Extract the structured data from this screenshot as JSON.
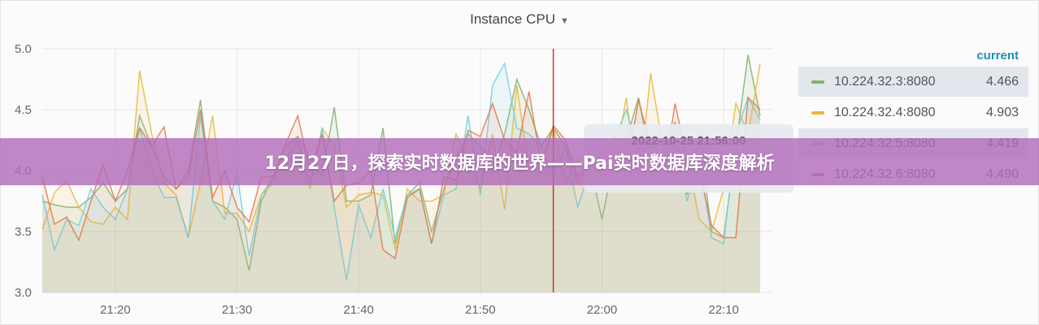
{
  "panel": {
    "title": "Instance CPU",
    "menu_icon": "caret-down-icon"
  },
  "banner": {
    "text": "12月27日，探索实时数据库的世界——Pai实时数据库深度解析"
  },
  "tooltip": {
    "time": "2022-10-25 21:56:00"
  },
  "legend": {
    "header": "current"
  },
  "chart_data": {
    "type": "line",
    "title": "Instance CPU",
    "x_start": "21:14",
    "x_step_minutes": 1,
    "xticks": [
      "21:20",
      "21:30",
      "21:40",
      "21:50",
      "22:00",
      "22:10"
    ],
    "yticks": [
      "3.0",
      "3.5",
      "4.0",
      "4.5",
      "5.0"
    ],
    "ylim": [
      3.0,
      5.0
    ],
    "xlim": [
      "21:14",
      "22:14"
    ],
    "grid": true,
    "legend_placement": "right",
    "cursor_time": "21:56",
    "cursor_color": "#c0392b",
    "series": [
      {
        "name": "10.224.32.3:8080",
        "current": "4.466",
        "color": "#7eb26d",
        "highlight": true,
        "values": [
          3.75,
          3.72,
          3.7,
          3.7,
          3.78,
          3.9,
          3.75,
          3.85,
          4.45,
          4.2,
          3.95,
          3.85,
          4.0,
          4.58,
          3.75,
          3.7,
          3.6,
          3.18,
          3.75,
          3.95,
          4.2,
          4.28,
          4.1,
          3.95,
          4.52,
          3.75,
          3.75,
          3.8,
          4.35,
          3.4,
          3.8,
          3.9,
          3.5,
          3.85,
          4.1,
          4.3,
          4.2,
          4.0,
          4.3,
          4.75,
          4.5,
          4.2,
          4.35,
          4.2,
          3.9,
          4.05,
          3.6,
          4.1,
          4.25,
          4.6,
          4.1,
          3.9,
          4.4,
          3.8,
          4.3,
          3.5,
          3.45,
          4.2,
          4.95,
          4.45
        ]
      },
      {
        "name": "10.224.32.4:8080",
        "current": "4.903",
        "color": "#eab839",
        "highlight": false,
        "values": [
          3.52,
          3.82,
          3.92,
          3.7,
          3.58,
          3.56,
          3.7,
          3.6,
          4.82,
          4.3,
          3.9,
          3.8,
          3.45,
          3.9,
          4.45,
          3.65,
          3.65,
          3.5,
          3.8,
          3.9,
          4.2,
          4.25,
          3.85,
          4.35,
          4.2,
          3.7,
          3.8,
          3.82,
          3.8,
          3.35,
          3.85,
          3.75,
          3.75,
          3.8,
          4.3,
          4.1,
          3.85,
          4.3,
          3.68,
          4.7,
          4.0,
          4.05,
          4.35,
          3.9,
          4.1,
          3.95,
          4.2,
          4.05,
          4.6,
          3.85,
          4.8,
          4.2,
          3.85,
          4.1,
          3.6,
          3.5,
          3.85,
          4.55,
          4.3,
          4.88
        ]
      },
      {
        "name": "10.224.32.5:8080",
        "current": "4.419",
        "color": "#6ed0e0",
        "highlight": true,
        "values": [
          3.8,
          3.35,
          3.6,
          3.55,
          3.85,
          3.7,
          3.6,
          3.85,
          4.35,
          4.0,
          3.78,
          3.78,
          3.45,
          4.45,
          3.75,
          3.6,
          3.98,
          3.3,
          3.8,
          3.95,
          4.1,
          4.25,
          3.9,
          4.35,
          3.7,
          3.1,
          3.72,
          3.45,
          3.85,
          3.45,
          3.8,
          3.85,
          3.4,
          3.8,
          3.85,
          4.45,
          3.8,
          4.7,
          4.88,
          4.35,
          4.3,
          4.2,
          3.95,
          4.2,
          3.7,
          4.0,
          4.15,
          4.25,
          4.5,
          4.1,
          4.25,
          3.95,
          4.2,
          3.75,
          4.1,
          3.45,
          3.4,
          4.3,
          4.6,
          4.42
        ]
      },
      {
        "name": "10.224.32.6:8080",
        "current": "4.490",
        "color": "#e5764a",
        "highlight": false,
        "values": [
          3.95,
          3.56,
          3.62,
          3.43,
          3.75,
          4.05,
          3.75,
          4.0,
          4.35,
          4.2,
          4.36,
          3.85,
          3.95,
          4.5,
          3.78,
          4.0,
          3.7,
          3.58,
          3.95,
          3.95,
          4.22,
          4.45,
          4.0,
          4.3,
          3.75,
          3.88,
          3.9,
          4.0,
          3.35,
          3.28,
          3.78,
          3.85,
          3.4,
          3.95,
          3.92,
          4.33,
          4.28,
          4.55,
          4.25,
          4.15,
          4.65,
          4.05,
          4.37,
          4.25,
          3.95,
          4.05,
          3.98,
          4.3,
          4.0,
          4.58,
          4.2,
          3.9,
          4.55,
          4.1,
          4.0,
          3.55,
          3.45,
          3.45,
          4.6,
          4.5
        ]
      }
    ]
  }
}
